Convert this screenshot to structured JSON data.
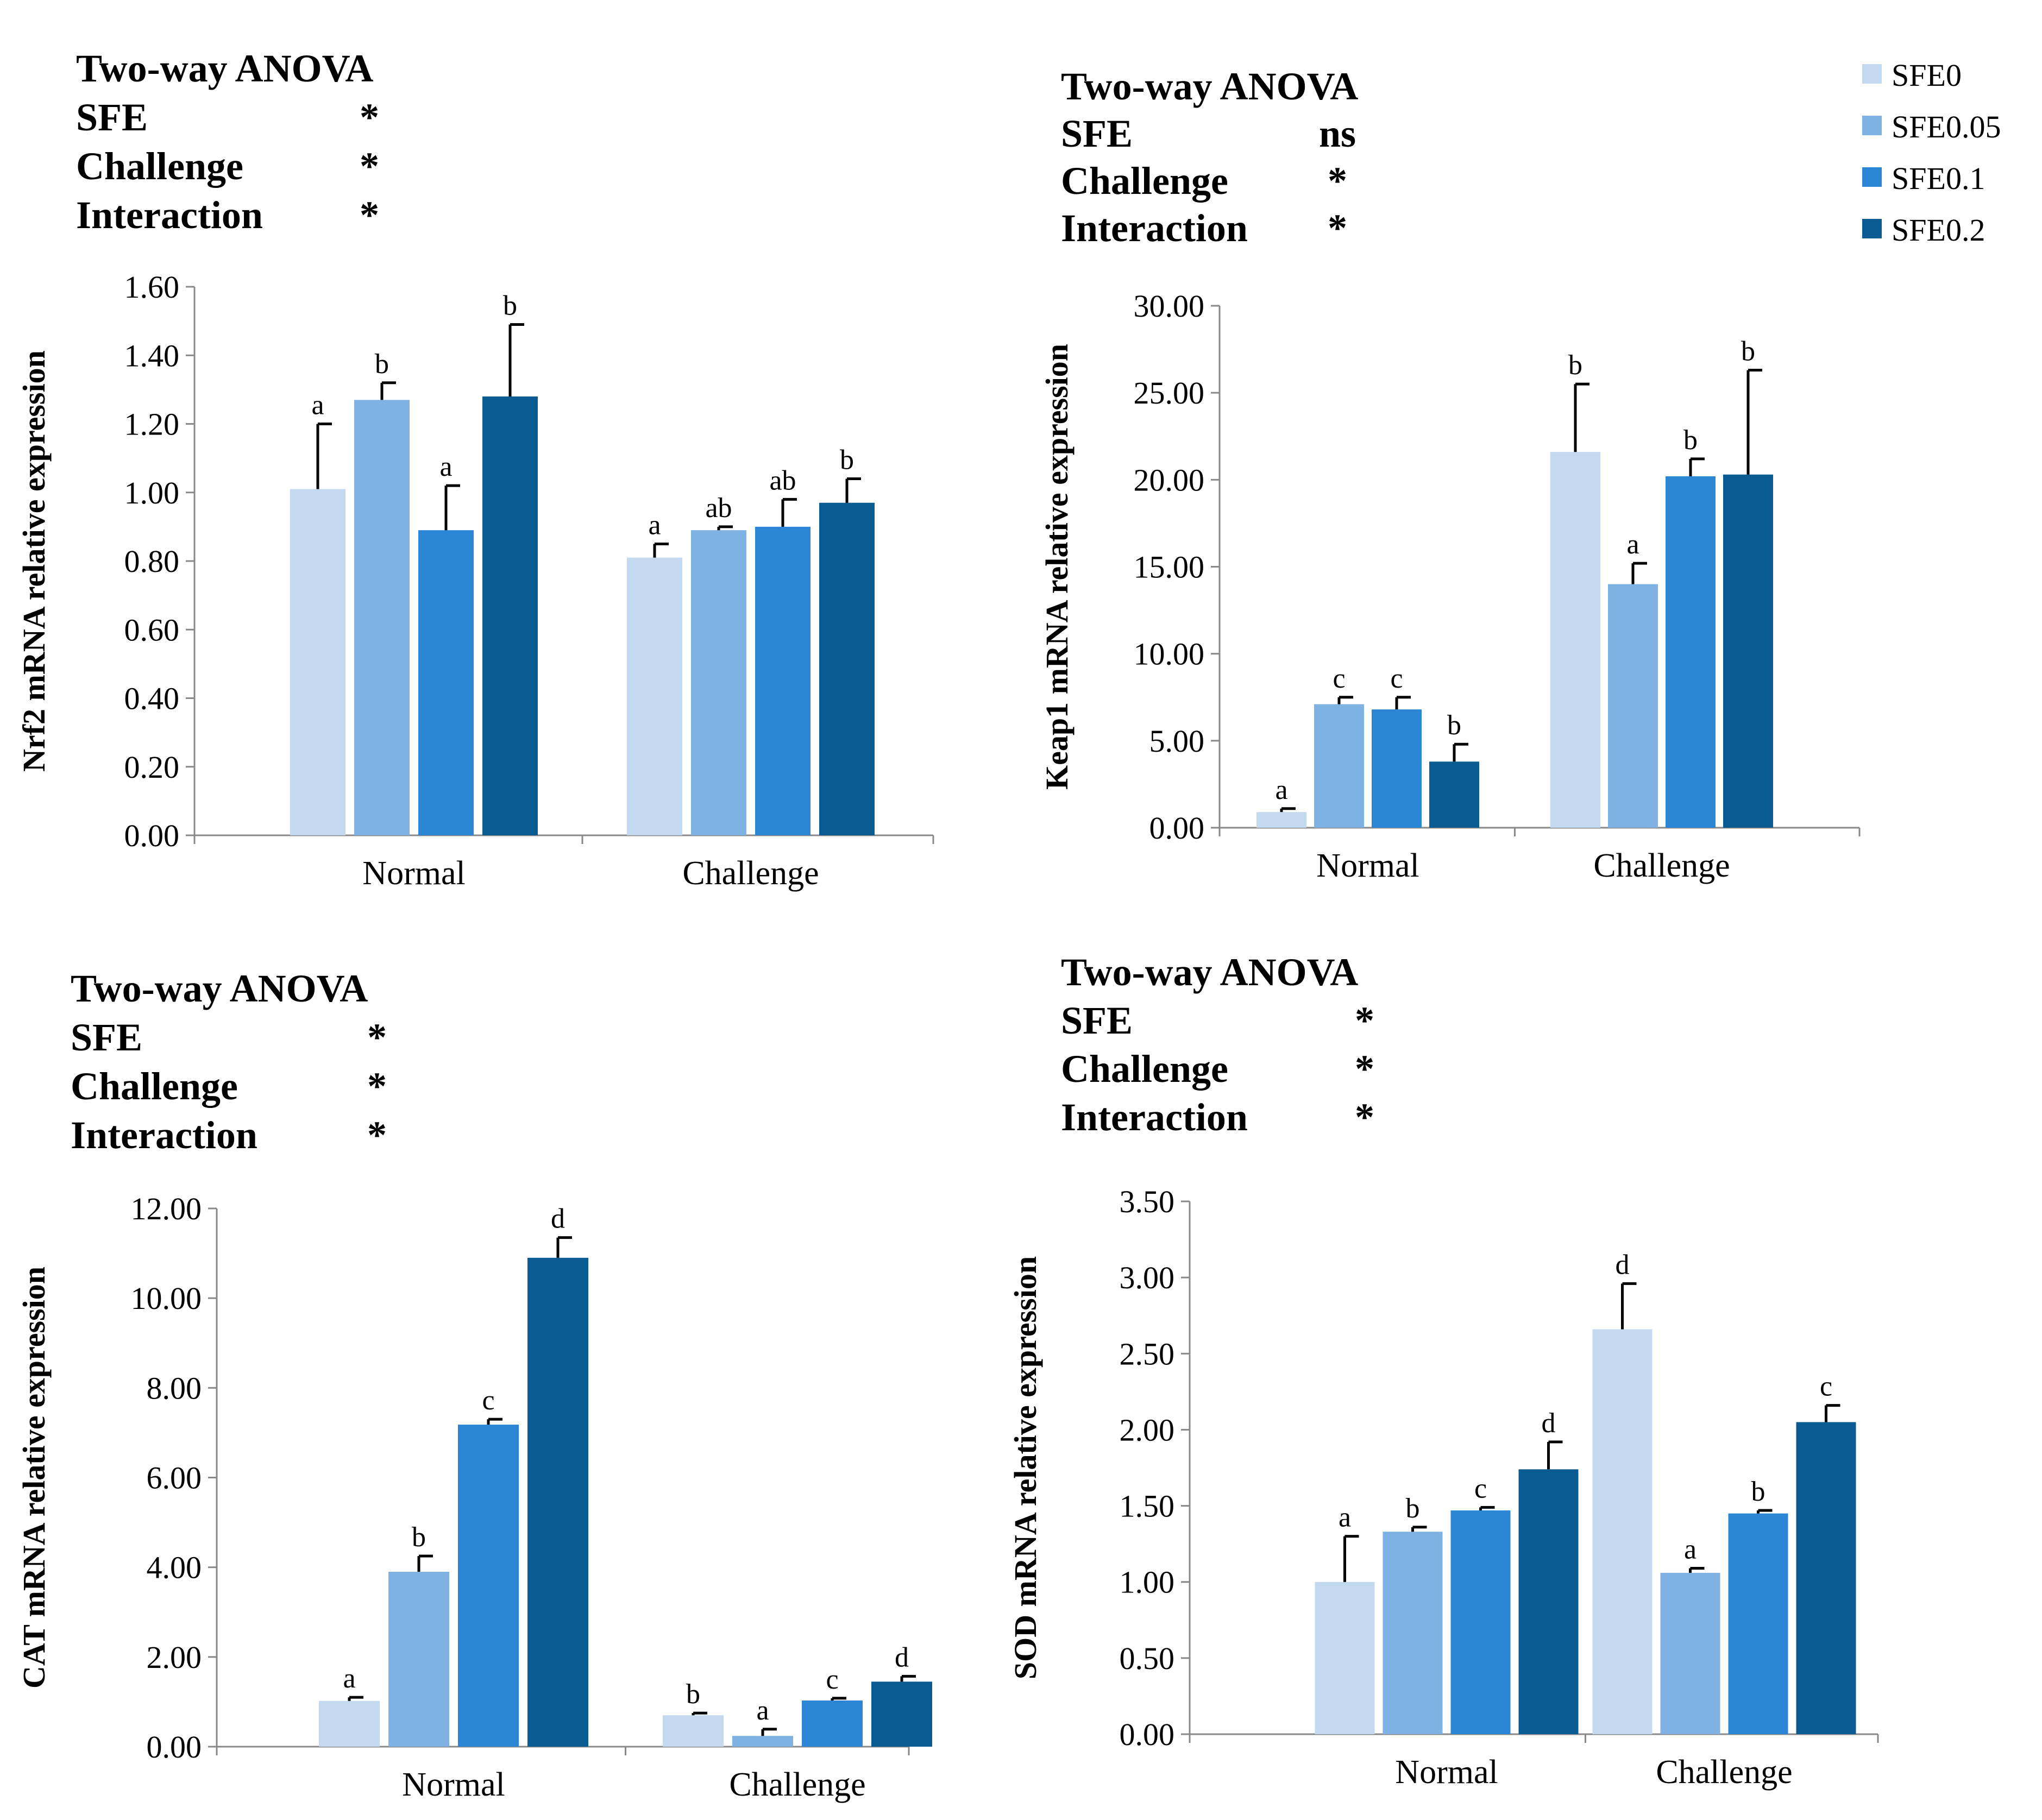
{
  "colors": {
    "SFE0": "#C2D9F0",
    "SFE0.05": "#7EB2E3",
    "SFE0.1": "#2B86D6",
    "SFE0.2": "#0B5B93"
  },
  "legend": [
    "SFE0",
    "SFE0.05",
    "SFE0.1",
    "SFE0.2"
  ],
  "chart_data": [
    {
      "type": "bar",
      "anova": {
        "title": "Two-way ANOVA",
        "rows": [
          {
            "label": "SFE",
            "value": "*"
          },
          {
            "label": "Challenge",
            "value": "*"
          },
          {
            "label": "Interaction",
            "value": "*"
          }
        ]
      },
      "ylabel": "Nrf2 mRNA relative expression",
      "ylim": [
        0,
        1.6
      ],
      "yticks": [
        "0.00",
        "0.20",
        "0.40",
        "0.60",
        "0.80",
        "1.00",
        "1.20",
        "1.40",
        "1.60"
      ],
      "categories": [
        "Normal",
        "Challenge"
      ],
      "series": [
        {
          "name": "SFE0",
          "values": [
            1.01,
            0.81
          ],
          "errors": [
            0.19,
            0.04
          ],
          "letters": [
            "a",
            "a"
          ]
        },
        {
          "name": "SFE0.05",
          "values": [
            1.27,
            0.89
          ],
          "errors": [
            0.05,
            0.01
          ],
          "letters": [
            "b",
            "ab"
          ]
        },
        {
          "name": "SFE0.1",
          "values": [
            0.89,
            0.9
          ],
          "errors": [
            0.13,
            0.08
          ],
          "letters": [
            "a",
            "ab"
          ]
        },
        {
          "name": "SFE0.2",
          "values": [
            1.28,
            0.97
          ],
          "errors": [
            0.21,
            0.07
          ],
          "letters": [
            "b",
            "b"
          ]
        }
      ]
    },
    {
      "type": "bar",
      "anova": {
        "title": "Two-way ANOVA",
        "rows": [
          {
            "label": "SFE",
            "value": "ns"
          },
          {
            "label": "Challenge",
            "value": "*"
          },
          {
            "label": "Interaction",
            "value": "*"
          }
        ]
      },
      "ylabel": "Keap1 mRNA relative expression",
      "ylim": [
        0,
        30
      ],
      "yticks": [
        "0.00",
        "5.00",
        "10.00",
        "15.00",
        "20.00",
        "25.00",
        "30.00"
      ],
      "categories": [
        "Normal",
        "Challenge"
      ],
      "series": [
        {
          "name": "SFE0",
          "values": [
            0.9,
            21.6
          ],
          "errors": [
            0.2,
            3.9
          ],
          "letters": [
            "a",
            "b"
          ]
        },
        {
          "name": "SFE0.05",
          "values": [
            7.1,
            14.0
          ],
          "errors": [
            0.4,
            1.2
          ],
          "letters": [
            "c",
            "a"
          ]
        },
        {
          "name": "SFE0.1",
          "values": [
            6.8,
            20.2
          ],
          "errors": [
            0.7,
            1.0
          ],
          "letters": [
            "c",
            "b"
          ]
        },
        {
          "name": "SFE0.2",
          "values": [
            3.8,
            20.3
          ],
          "errors": [
            1.0,
            6.0
          ],
          "letters": [
            "b",
            "b"
          ]
        }
      ]
    },
    {
      "type": "bar",
      "anova": {
        "title": "Two-way ANOVA",
        "rows": [
          {
            "label": "SFE",
            "value": "*"
          },
          {
            "label": "Challenge",
            "value": "*"
          },
          {
            "label": "Interaction",
            "value": "*"
          }
        ]
      },
      "ylabel": "CAT mRNA relative expression",
      "ylim": [
        0,
        12
      ],
      "yticks": [
        "0.00",
        "2.00",
        "4.00",
        "6.00",
        "8.00",
        "10.00",
        "12.00"
      ],
      "categories": [
        "Normal",
        "Challenge"
      ],
      "series": [
        {
          "name": "SFE0",
          "values": [
            1.02,
            0.7
          ],
          "errors": [
            0.08,
            0.05
          ],
          "letters": [
            "a",
            "b"
          ]
        },
        {
          "name": "SFE0.05",
          "values": [
            3.9,
            0.24
          ],
          "errors": [
            0.35,
            0.15
          ],
          "letters": [
            "b",
            "a"
          ]
        },
        {
          "name": "SFE0.1",
          "values": [
            7.18,
            1.03
          ],
          "errors": [
            0.12,
            0.05
          ],
          "letters": [
            "c",
            "c"
          ]
        },
        {
          "name": "SFE0.2",
          "values": [
            10.9,
            1.45
          ],
          "errors": [
            0.45,
            0.12
          ],
          "letters": [
            "d",
            "d"
          ]
        }
      ]
    },
    {
      "type": "bar",
      "anova": {
        "title": "Two-way ANOVA",
        "rows": [
          {
            "label": "SFE",
            "value": "*"
          },
          {
            "label": "Challenge",
            "value": "*"
          },
          {
            "label": "Interaction",
            "value": "*"
          }
        ]
      },
      "ylabel": "SOD mRNA relative expression",
      "ylim": [
        0,
        3.5
      ],
      "yticks": [
        "0.00",
        "0.50",
        "1.00",
        "1.50",
        "2.00",
        "2.50",
        "3.00",
        "3.50"
      ],
      "categories": [
        "Normal",
        "Challenge"
      ],
      "series": [
        {
          "name": "SFE0",
          "values": [
            1.0,
            2.66
          ],
          "errors": [
            0.3,
            0.3
          ],
          "letters": [
            "a",
            "d"
          ]
        },
        {
          "name": "SFE0.05",
          "values": [
            1.33,
            1.06
          ],
          "errors": [
            0.03,
            0.03
          ],
          "letters": [
            "b",
            "a"
          ]
        },
        {
          "name": "SFE0.1",
          "values": [
            1.47,
            1.45
          ],
          "errors": [
            0.02,
            0.02
          ],
          "letters": [
            "c",
            "b"
          ]
        },
        {
          "name": "SFE0.2",
          "values": [
            1.74,
            2.05
          ],
          "errors": [
            0.18,
            0.11
          ],
          "letters": [
            "d",
            "c"
          ]
        }
      ]
    }
  ]
}
